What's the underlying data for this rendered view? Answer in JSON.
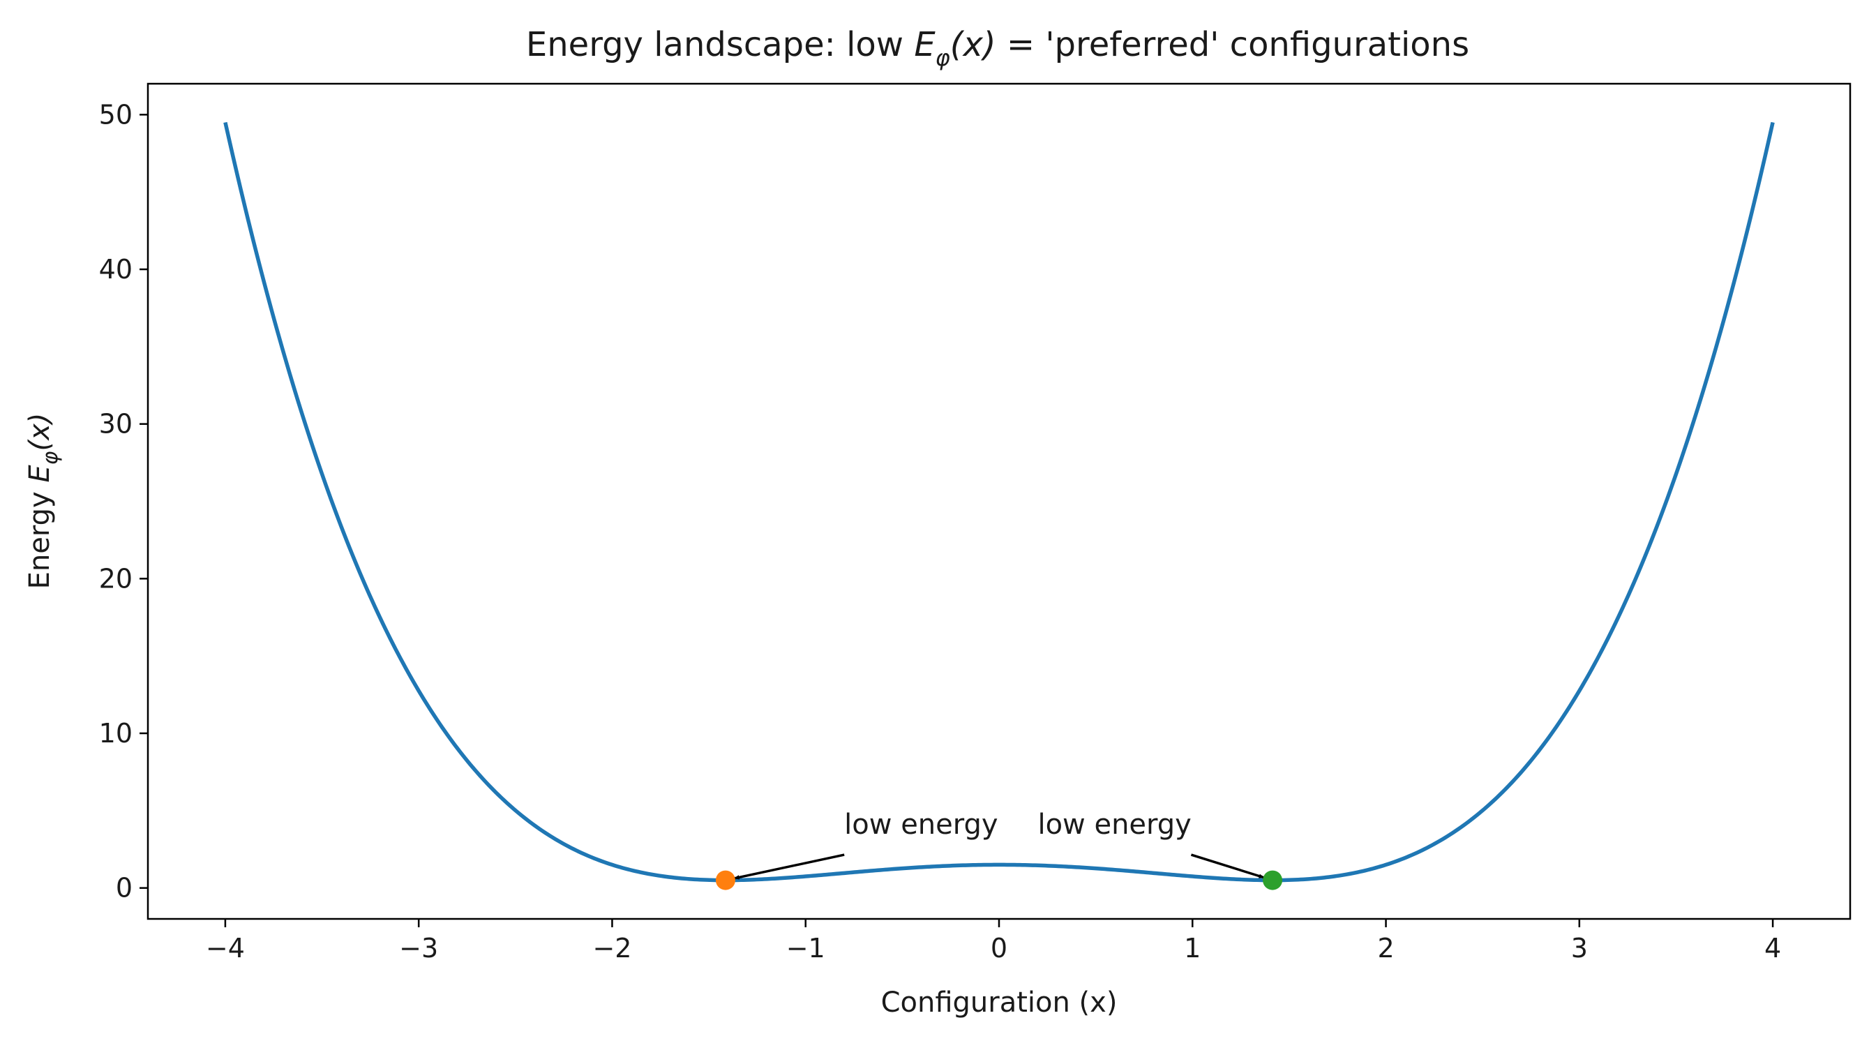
{
  "chart_data": {
    "type": "line",
    "title": {
      "prefix": "Energy landscape: low ",
      "symbol": "E",
      "subscript": "φ",
      "arg": "(x)",
      "suffix": " = 'preferred' configurations"
    },
    "xlabel": "Configuration (x)",
    "ylabel": {
      "prefix": "Energy  ",
      "symbol": "E",
      "subscript": "φ",
      "arg": "(x)"
    },
    "xlim": [
      -4.4,
      4.4
    ],
    "ylim": [
      -2,
      52
    ],
    "xticks": [
      -4,
      -3,
      -2,
      -1,
      0,
      1,
      2,
      3,
      4
    ],
    "xtick_labels": [
      "−4",
      "−3",
      "−2",
      "−1",
      "0",
      "1",
      "2",
      "3",
      "4"
    ],
    "yticks": [
      0,
      10,
      20,
      30,
      40,
      50
    ],
    "ytick_labels": [
      "0",
      "10",
      "20",
      "30",
      "40",
      "50"
    ],
    "grid": false,
    "series": [
      {
        "name": "energy curve",
        "x_range": [
          -4,
          4
        ],
        "formula": "0.25*x^4 - x^2 + 1.5",
        "color": "#1f77b4"
      }
    ],
    "points": [
      {
        "name": "left minimum",
        "x": -1.414,
        "y": 0.5,
        "color": "#ff7f0e"
      },
      {
        "name": "right minimum",
        "x": 1.414,
        "y": 0.5,
        "color": "#2ca02c"
      }
    ],
    "annotations": [
      {
        "text": "low energy",
        "text_x": -0.8,
        "text_y": 3.5,
        "target_x": -1.414,
        "target_y": 0.5
      },
      {
        "text": "low energy",
        "text_x": 0.2,
        "text_y": 3.5,
        "target_x": 1.414,
        "target_y": 0.5
      }
    ]
  }
}
